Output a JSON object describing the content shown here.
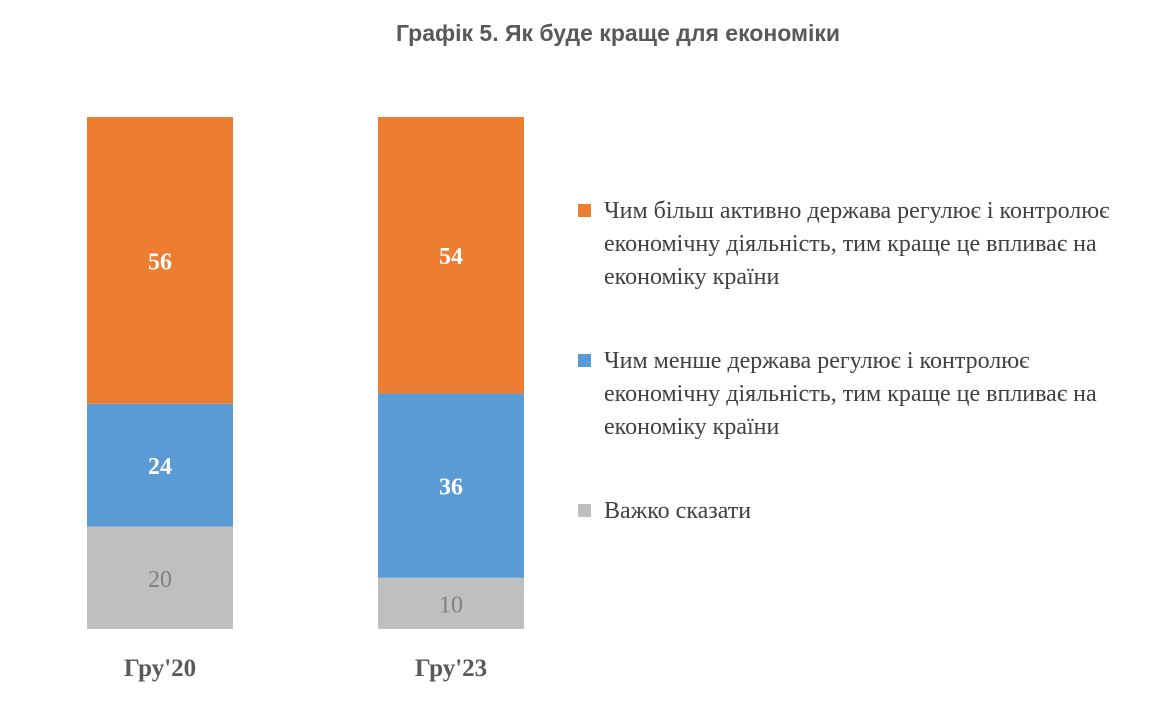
{
  "title": "Графік 5. Як буде краще для економіки",
  "chart_data": {
    "type": "bar",
    "stacked": true,
    "categories": [
      "Гру'20",
      "Гру'23"
    ],
    "series": [
      {
        "name": "Чим більш активно держава регулює і контролює економічну діяльність, тим краще це впливає на економіку країни",
        "values": [
          56,
          54
        ],
        "color": "#ED7D31",
        "label_color": "#ffffff"
      },
      {
        "name": "Чим менше держава регулює і контролює економічну діяльність, тим краще це впливає на економіку країни",
        "values": [
          24,
          36
        ],
        "color": "#5B9BD5",
        "label_color": "#ffffff"
      },
      {
        "name": "Важко сказати",
        "values": [
          20,
          10
        ],
        "color": "#BFBFBF",
        "label_color": "#808080"
      }
    ],
    "ylim": [
      0,
      100
    ],
    "legend_position": "right"
  }
}
